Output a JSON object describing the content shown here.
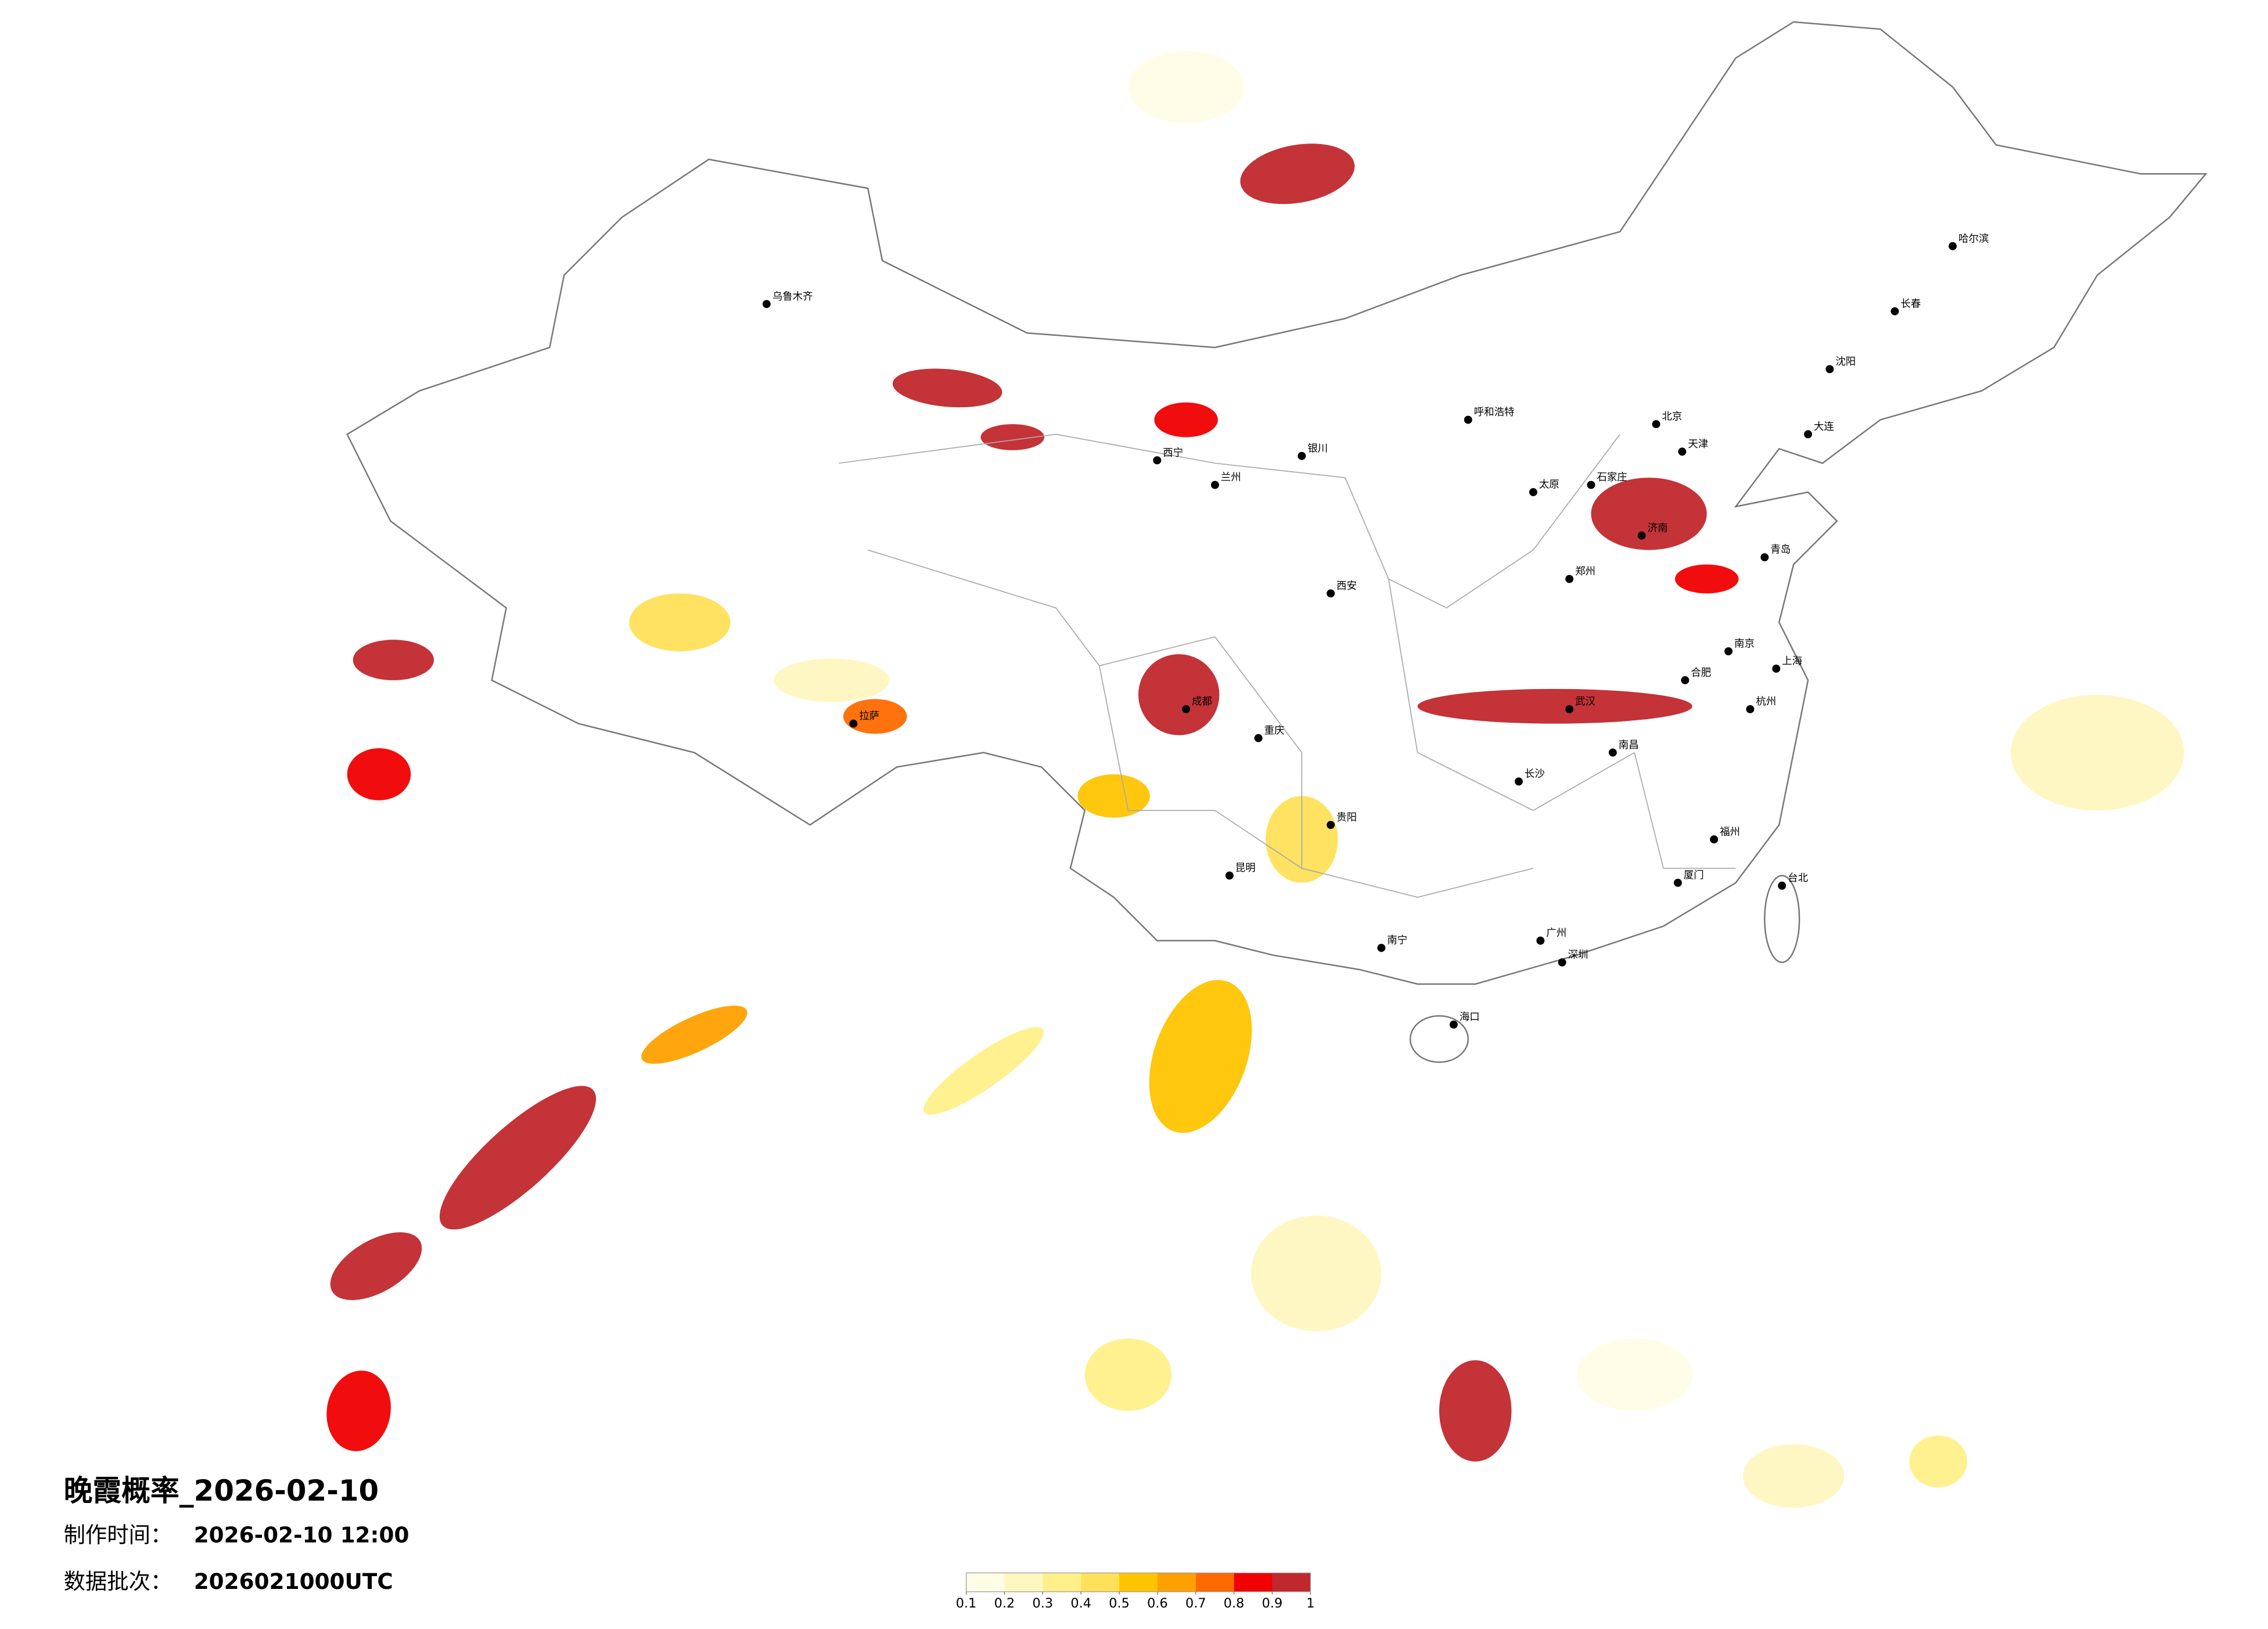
{
  "header": {
    "title": "晚霞概率_2026-02-10",
    "made_label": "制作时间：",
    "made_time": "2026-02-10 12:00",
    "batch_label": "数据批次：",
    "batch": "2026021000UTC"
  },
  "legend": {
    "colors": [
      "#fffde6",
      "#fff7c0",
      "#fff08a",
      "#ffe05a",
      "#ffc400",
      "#ffa000",
      "#ff6a00",
      "#f00000",
      "#c0282d"
    ],
    "ticks": [
      0.1,
      0.2,
      0.3,
      0.4,
      0.5,
      0.6,
      0.7,
      0.8,
      0.9,
      1
    ]
  },
  "areas": [
    0.95,
    0.95,
    0.95,
    0.85,
    0.95,
    0.95,
    0.95,
    0.75,
    0.95,
    0.85,
    0.95,
    0.65,
    0.95,
    0.85,
    0.95,
    0.85,
    0.55,
    0.35,
    0.25,
    0.45,
    0.25,
    0.35,
    0.15,
    0.25,
    0.35,
    0.45,
    0.55,
    0.15,
    0.25
  ],
  "cities": [
    "北京",
    "天津",
    "石家庄",
    "太原",
    "济南",
    "郑州",
    "武汉",
    "合肥",
    "南京",
    "上海",
    "杭州",
    "长沙",
    "南昌",
    "福州",
    "台北",
    "广州",
    "南宁",
    "海口",
    "贵阳",
    "昆明",
    "重庆",
    "成都",
    "西安",
    "兰州",
    "西宁",
    "银川",
    "呼和浩特",
    "沈阳",
    "长春",
    "哈尔滨",
    "乌鲁木齐",
    "拉萨",
    "青岛",
    "大连",
    "厦门",
    "深圳"
  ]
}
